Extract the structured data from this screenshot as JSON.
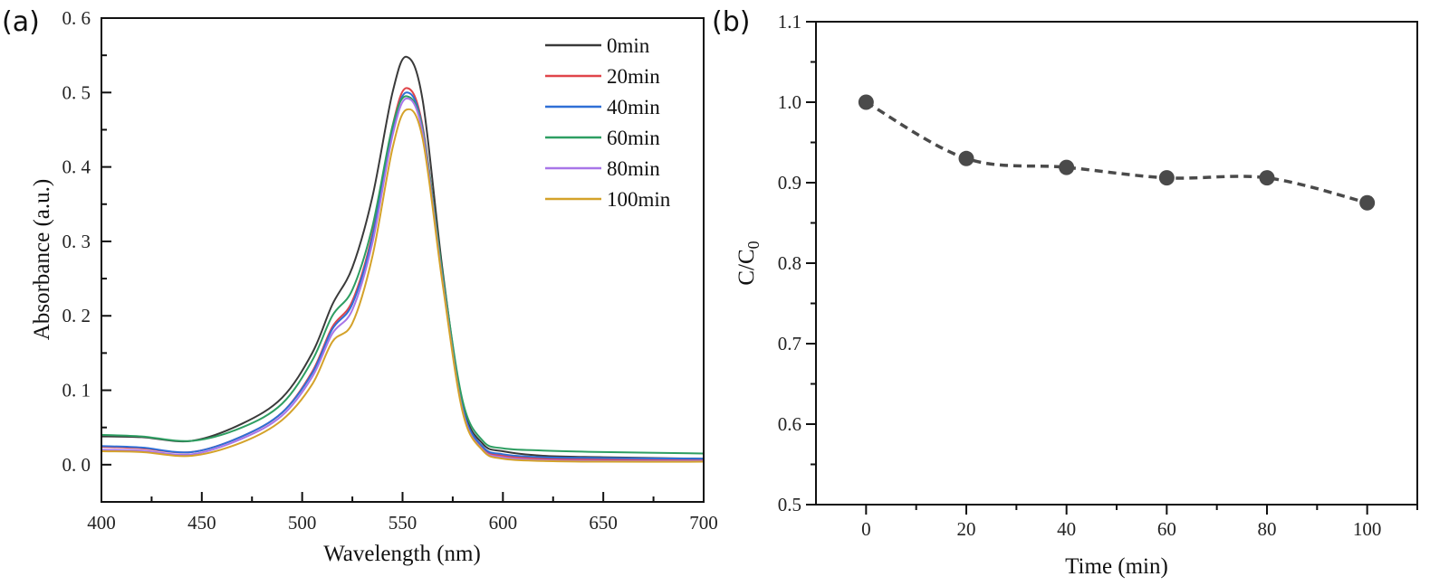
{
  "chart_data": [
    {
      "panel": "(a)",
      "type": "line",
      "title": "",
      "xlabel": "Wavelength (nm)",
      "ylabel": "Absorbance (a.u.)",
      "xlim": [
        400,
        700
      ],
      "ylim": [
        -0.05,
        0.6
      ],
      "xticks": [
        "400",
        "450",
        "500",
        "550",
        "600",
        "650",
        "700"
      ],
      "yticks": [
        "0.0",
        "0.1",
        "0.2",
        "0.3",
        "0.4",
        "0.5",
        "0.6"
      ],
      "grid": false,
      "legend_position": "top-right",
      "x": [
        400,
        420,
        445,
        470,
        490,
        505,
        515,
        525,
        535,
        545,
        552,
        560,
        570,
        580,
        590,
        600,
        620,
        650,
        700
      ],
      "series": [
        {
          "name": "0min",
          "color": "#3a3a3a",
          "values": [
            0.038,
            0.037,
            0.032,
            0.055,
            0.09,
            0.15,
            0.215,
            0.265,
            0.36,
            0.5,
            0.548,
            0.49,
            0.26,
            0.08,
            0.028,
            0.018,
            0.012,
            0.01,
            0.008
          ]
        },
        {
          "name": "20min",
          "color": "#e0454a",
          "values": [
            0.024,
            0.022,
            0.017,
            0.038,
            0.07,
            0.125,
            0.185,
            0.22,
            0.31,
            0.455,
            0.506,
            0.455,
            0.25,
            0.075,
            0.022,
            0.012,
            0.008,
            0.007,
            0.006
          ]
        },
        {
          "name": "40min",
          "color": "#2f6fd6",
          "values": [
            0.025,
            0.023,
            0.017,
            0.038,
            0.07,
            0.123,
            0.182,
            0.216,
            0.306,
            0.45,
            0.5,
            0.452,
            0.25,
            0.076,
            0.024,
            0.014,
            0.01,
            0.009,
            0.008
          ]
        },
        {
          "name": "60min",
          "color": "#2e9e62",
          "values": [
            0.04,
            0.038,
            0.032,
            0.05,
            0.082,
            0.14,
            0.2,
            0.235,
            0.32,
            0.455,
            0.495,
            0.45,
            0.255,
            0.085,
            0.032,
            0.022,
            0.019,
            0.017,
            0.015
          ]
        },
        {
          "name": "80min",
          "color": "#a875e8",
          "values": [
            0.02,
            0.019,
            0.014,
            0.035,
            0.066,
            0.118,
            0.176,
            0.208,
            0.298,
            0.442,
            0.492,
            0.446,
            0.246,
            0.072,
            0.02,
            0.01,
            0.006,
            0.005,
            0.005
          ]
        },
        {
          "name": "100min",
          "color": "#d4a22a",
          "values": [
            0.018,
            0.017,
            0.012,
            0.03,
            0.06,
            0.108,
            0.165,
            0.19,
            0.28,
            0.425,
            0.477,
            0.438,
            0.242,
            0.07,
            0.019,
            0.008,
            0.005,
            0.004,
            0.004
          ]
        }
      ]
    },
    {
      "panel": "(b)",
      "type": "scatter",
      "title": "",
      "xlabel": "Time (min)",
      "ylabel": "C/C0",
      "ylabel_main": "C/C",
      "ylabel_sub": "0",
      "xlim": [
        -10,
        110
      ],
      "ylim": [
        0.5,
        1.1
      ],
      "xticks": [
        "0",
        "20",
        "40",
        "60",
        "80",
        "100"
      ],
      "yticks": [
        "0.5",
        "0.6",
        "0.7",
        "0.8",
        "0.9",
        "1.0",
        "1.1"
      ],
      "grid": false,
      "marker_color": "#4a4a4a",
      "line_style": "dashed",
      "series": [
        {
          "name": "C/C0",
          "x": [
            0,
            20,
            40,
            60,
            80,
            100
          ],
          "values": [
            1.0,
            0.93,
            0.919,
            0.906,
            0.906,
            0.875
          ]
        }
      ]
    }
  ]
}
